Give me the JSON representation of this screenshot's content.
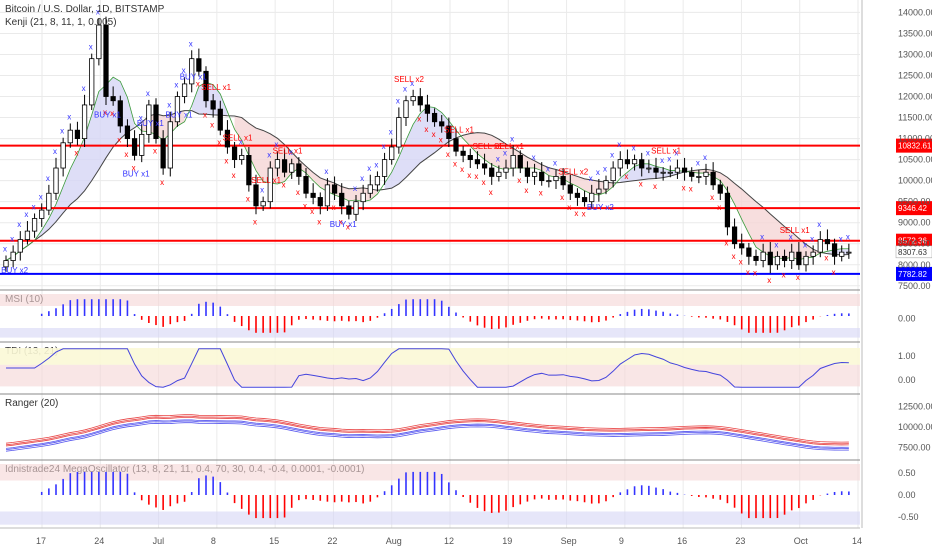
{
  "header": {
    "title": "Bitcoin / U.S. Dollar, 1D, BITSTAMP",
    "indicator": "Kenji (21, 8, 11, 1, 0.005)"
  },
  "colors": {
    "up": "#ffffff",
    "down": "#000000",
    "wick": "#000000",
    "red_line": "#ff0000",
    "blue_line": "#0000ff",
    "band_blue": "#d6d6f5",
    "band_red": "#f5d6d6",
    "signal_red": "#ff0000",
    "signal_blue": "#3333ff",
    "grid": "#eaeaea"
  },
  "chart_data": {
    "type": "candlestick",
    "title": "Bitcoin / U.S. Dollar, 1D, BITSTAMP",
    "x_tick_labels": [
      "17",
      "24",
      "Jul",
      "8",
      "15",
      "22",
      "Aug",
      "12",
      "19",
      "Sep",
      "9",
      "16",
      "23",
      "Oct",
      "14"
    ],
    "price_axis_ticks": [
      "14000.00",
      "13500.00",
      "13000.00",
      "12500.00",
      "12000.00",
      "11500.00",
      "11000.00",
      "10500.00",
      "10000.00",
      "9500.00",
      "9000.00",
      "8500.00",
      "8000.00",
      "7500.00"
    ],
    "price_range": [
      7400,
      14200
    ],
    "horizontal_levels": [
      {
        "label": "10832.61",
        "value": 10832.61,
        "color": "#ff0000"
      },
      {
        "label": "9346.42",
        "value": 9346.42,
        "color": "#ff0000"
      },
      {
        "label": "8572.36",
        "value": 8572.36,
        "color": "#ff0000"
      },
      {
        "label": "7782.82",
        "value": 7782.82,
        "color": "#0000ff"
      }
    ],
    "last_price_label": "8307.63",
    "closes": [
      8100,
      8300,
      8600,
      8800,
      9100,
      9300,
      9700,
      10300,
      10900,
      11200,
      11000,
      11800,
      12900,
      13700,
      12000,
      11900,
      11300,
      11000,
      10600,
      11100,
      11800,
      11000,
      10300,
      11400,
      12000,
      12300,
      12900,
      12600,
      11900,
      11700,
      11200,
      10800,
      10500,
      10600,
      9900,
      9400,
      9500,
      10300,
      10500,
      10200,
      10400,
      10100,
      9700,
      9600,
      9400,
      9900,
      9700,
      9400,
      9200,
      9500,
      9700,
      9900,
      10100,
      10500,
      10800,
      11500,
      11900,
      12000,
      11800,
      11600,
      11400,
      11300,
      11000,
      10700,
      10600,
      10500,
      10400,
      10300,
      10100,
      10200,
      10300,
      10600,
      10300,
      10100,
      10200,
      10000,
      10000,
      10100,
      9900,
      9700,
      9600,
      9500,
      9700,
      9800,
      10000,
      10300,
      10500,
      10400,
      10500,
      10300,
      10300,
      10200,
      10200,
      10200,
      10300,
      10200,
      10100,
      10100,
      10200,
      9900,
      9700,
      8900,
      8500,
      8400,
      8200,
      8100,
      8300,
      8000,
      8200,
      8100,
      8300,
      8000,
      8200,
      8300,
      8600,
      8500,
      8200,
      8300,
      8300
    ],
    "signals": [
      {
        "text": "BUY x2",
        "side": "buy"
      },
      {
        "text": "BUY x1",
        "side": "buy"
      },
      {
        "text": "BUY x1",
        "side": "buy"
      },
      {
        "text": "BUY x1",
        "side": "buy"
      },
      {
        "text": "BUY x1",
        "side": "buy"
      },
      {
        "text": "BUY x1",
        "side": "buy"
      },
      {
        "text": "SELL x1",
        "side": "sell"
      },
      {
        "text": "SELL x1",
        "side": "sell"
      },
      {
        "text": "SELL x1",
        "side": "sell"
      },
      {
        "text": "SELL x1",
        "side": "sell"
      },
      {
        "text": "BUY x1",
        "side": "buy"
      },
      {
        "text": "SELL x2",
        "side": "sell"
      },
      {
        "text": "SELL x1",
        "side": "sell"
      },
      {
        "text": "SELL x1",
        "side": "sell"
      },
      {
        "text": "SELL x1",
        "side": "sell"
      },
      {
        "text": "SELL x2",
        "side": "sell"
      },
      {
        "text": "BUY x2",
        "side": "buy"
      },
      {
        "text": "SELL x1",
        "side": "sell"
      },
      {
        "text": "SELL x1",
        "side": "sell"
      }
    ]
  },
  "panes": [
    {
      "title": "MSI (10)",
      "ticks": [
        "0.00"
      ]
    },
    {
      "title": "TDI (13, 21)",
      "ticks": [
        "1.00",
        "0.00"
      ]
    },
    {
      "title": "Ranger (20)",
      "ticks": [
        "12500.00",
        "10000.00",
        "7500.00"
      ]
    },
    {
      "title": "Idnistrade24 MegaOscillator (13, 8, 21, 11, 0.4, 70, 30, 0.4, -0.4, 0.0001, -0.0001)",
      "ticks": [
        "0.50",
        "0.00",
        "-0.50"
      ]
    }
  ]
}
